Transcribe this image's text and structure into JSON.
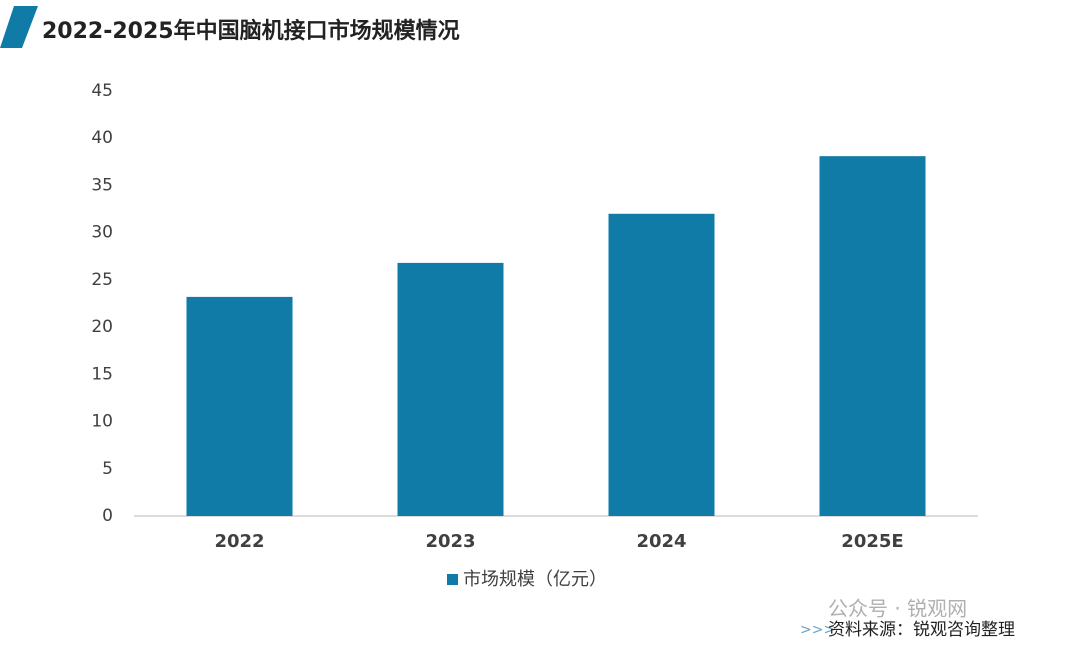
{
  "chart_data": {
    "type": "bar",
    "title": "2022-2025年中国脑机接口市场规模情况",
    "categories": [
      "2022",
      "2023",
      "2024",
      "2025E"
    ],
    "series": [
      {
        "name": "市场规模（亿元）",
        "color": "#0f7ba6",
        "values": [
          23.2,
          26.8,
          32.0,
          38.1
        ]
      }
    ],
    "ylim": [
      0,
      45
    ],
    "yticks": [
      0,
      5,
      10,
      15,
      20,
      25,
      30,
      35,
      40,
      45
    ],
    "source": "资料来源：锐观咨询整理",
    "watermark": "公众号 · 锐观网"
  }
}
